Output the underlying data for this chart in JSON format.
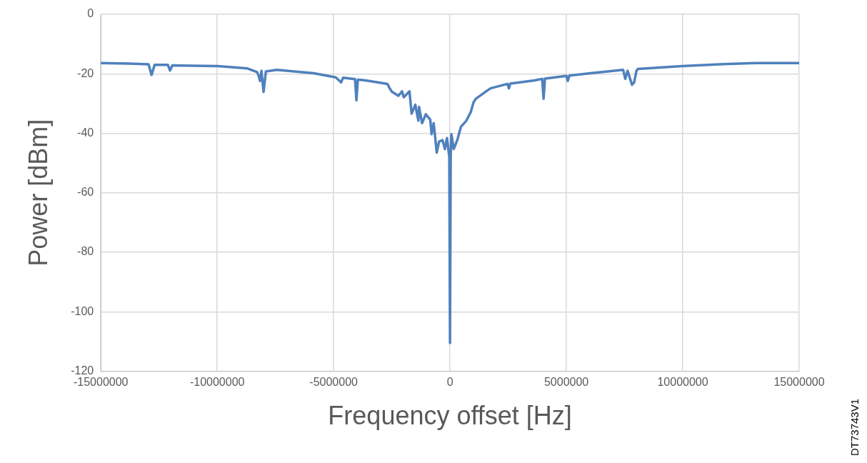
{
  "chart_data": {
    "type": "line",
    "xlabel": "Frequency offset [Hz]",
    "ylabel": "Power [dBm]",
    "xlim": [
      -15000000,
      15000000
    ],
    "xticks": [
      -15000000,
      -10000000,
      -5000000,
      0,
      5000000,
      10000000,
      15000000
    ],
    "ylim": [
      -120,
      0
    ],
    "yticks": [
      -120,
      -100,
      -80,
      -60,
      -40,
      -20,
      0
    ],
    "grid": true,
    "legend": false,
    "marker": "none",
    "line_style": "solid",
    "annotations": [
      "DT73743V1"
    ],
    "x": [
      -15000000,
      -13770000,
      -12950000,
      -12820000,
      -12690000,
      -12120000,
      -12030000,
      -11930000,
      -9970000,
      -8700000,
      -8290000,
      -8230000,
      -8160000,
      -8100000,
      -8010000,
      -7910000,
      -7440000,
      -5850000,
      -4910000,
      -4680000,
      -4590000,
      -4080000,
      -4020000,
      -3960000,
      -3640000,
      -3010000,
      -2690000,
      -2590000,
      -2500000,
      -2220000,
      -2060000,
      -1990000,
      -1740000,
      -1650000,
      -1490000,
      -1360000,
      -1330000,
      -1200000,
      -1040000,
      -850000,
      -790000,
      -700000,
      -570000,
      -470000,
      -320000,
      -220000,
      -130000,
      -30000,
      0,
      30000,
      60000,
      160000,
      320000,
      470000,
      700000,
      890000,
      1010000,
      1110000,
      1200000,
      1520000,
      1740000,
      2470000,
      2530000,
      2590000,
      3640000,
      3960000,
      4020000,
      4080000,
      5000000,
      5060000,
      5130000,
      6170000,
      7440000,
      7530000,
      7630000,
      7820000,
      7910000,
      8010000,
      8070000,
      9970000,
      11960000,
      13130000,
      15000000
    ],
    "series": [
      {
        "color": "#4f81bd",
        "values": [
          -16.4,
          -16.6,
          -16.8,
          -20.4,
          -17.0,
          -17.0,
          -18.9,
          -17.2,
          -17.4,
          -18.2,
          -19.4,
          -20.5,
          -22.4,
          -19.0,
          -26.1,
          -19.2,
          -18.7,
          -19.8,
          -21.2,
          -22.9,
          -21.3,
          -21.8,
          -28.9,
          -22.0,
          -22.2,
          -23.0,
          -23.4,
          -24.9,
          -26.0,
          -27.4,
          -25.9,
          -27.9,
          -25.9,
          -33.4,
          -30.4,
          -35.8,
          -31.1,
          -36.6,
          -33.6,
          -35.4,
          -40.3,
          -36.6,
          -46.5,
          -42.8,
          -42.3,
          -45.3,
          -41.6,
          -48,
          -110.5,
          -48,
          -40.3,
          -45.3,
          -42.1,
          -37.8,
          -35.8,
          -32.9,
          -29.6,
          -28.4,
          -27.9,
          -26.1,
          -24.9,
          -23.4,
          -24.9,
          -23.3,
          -22.2,
          -21.7,
          -28.4,
          -21.6,
          -20.7,
          -22.4,
          -20.6,
          -19.7,
          -18.7,
          -21.7,
          -19.0,
          -23.7,
          -22.9,
          -19.0,
          -18.4,
          -17.4,
          -16.7,
          -16.4,
          -16.4
        ]
      }
    ]
  }
}
